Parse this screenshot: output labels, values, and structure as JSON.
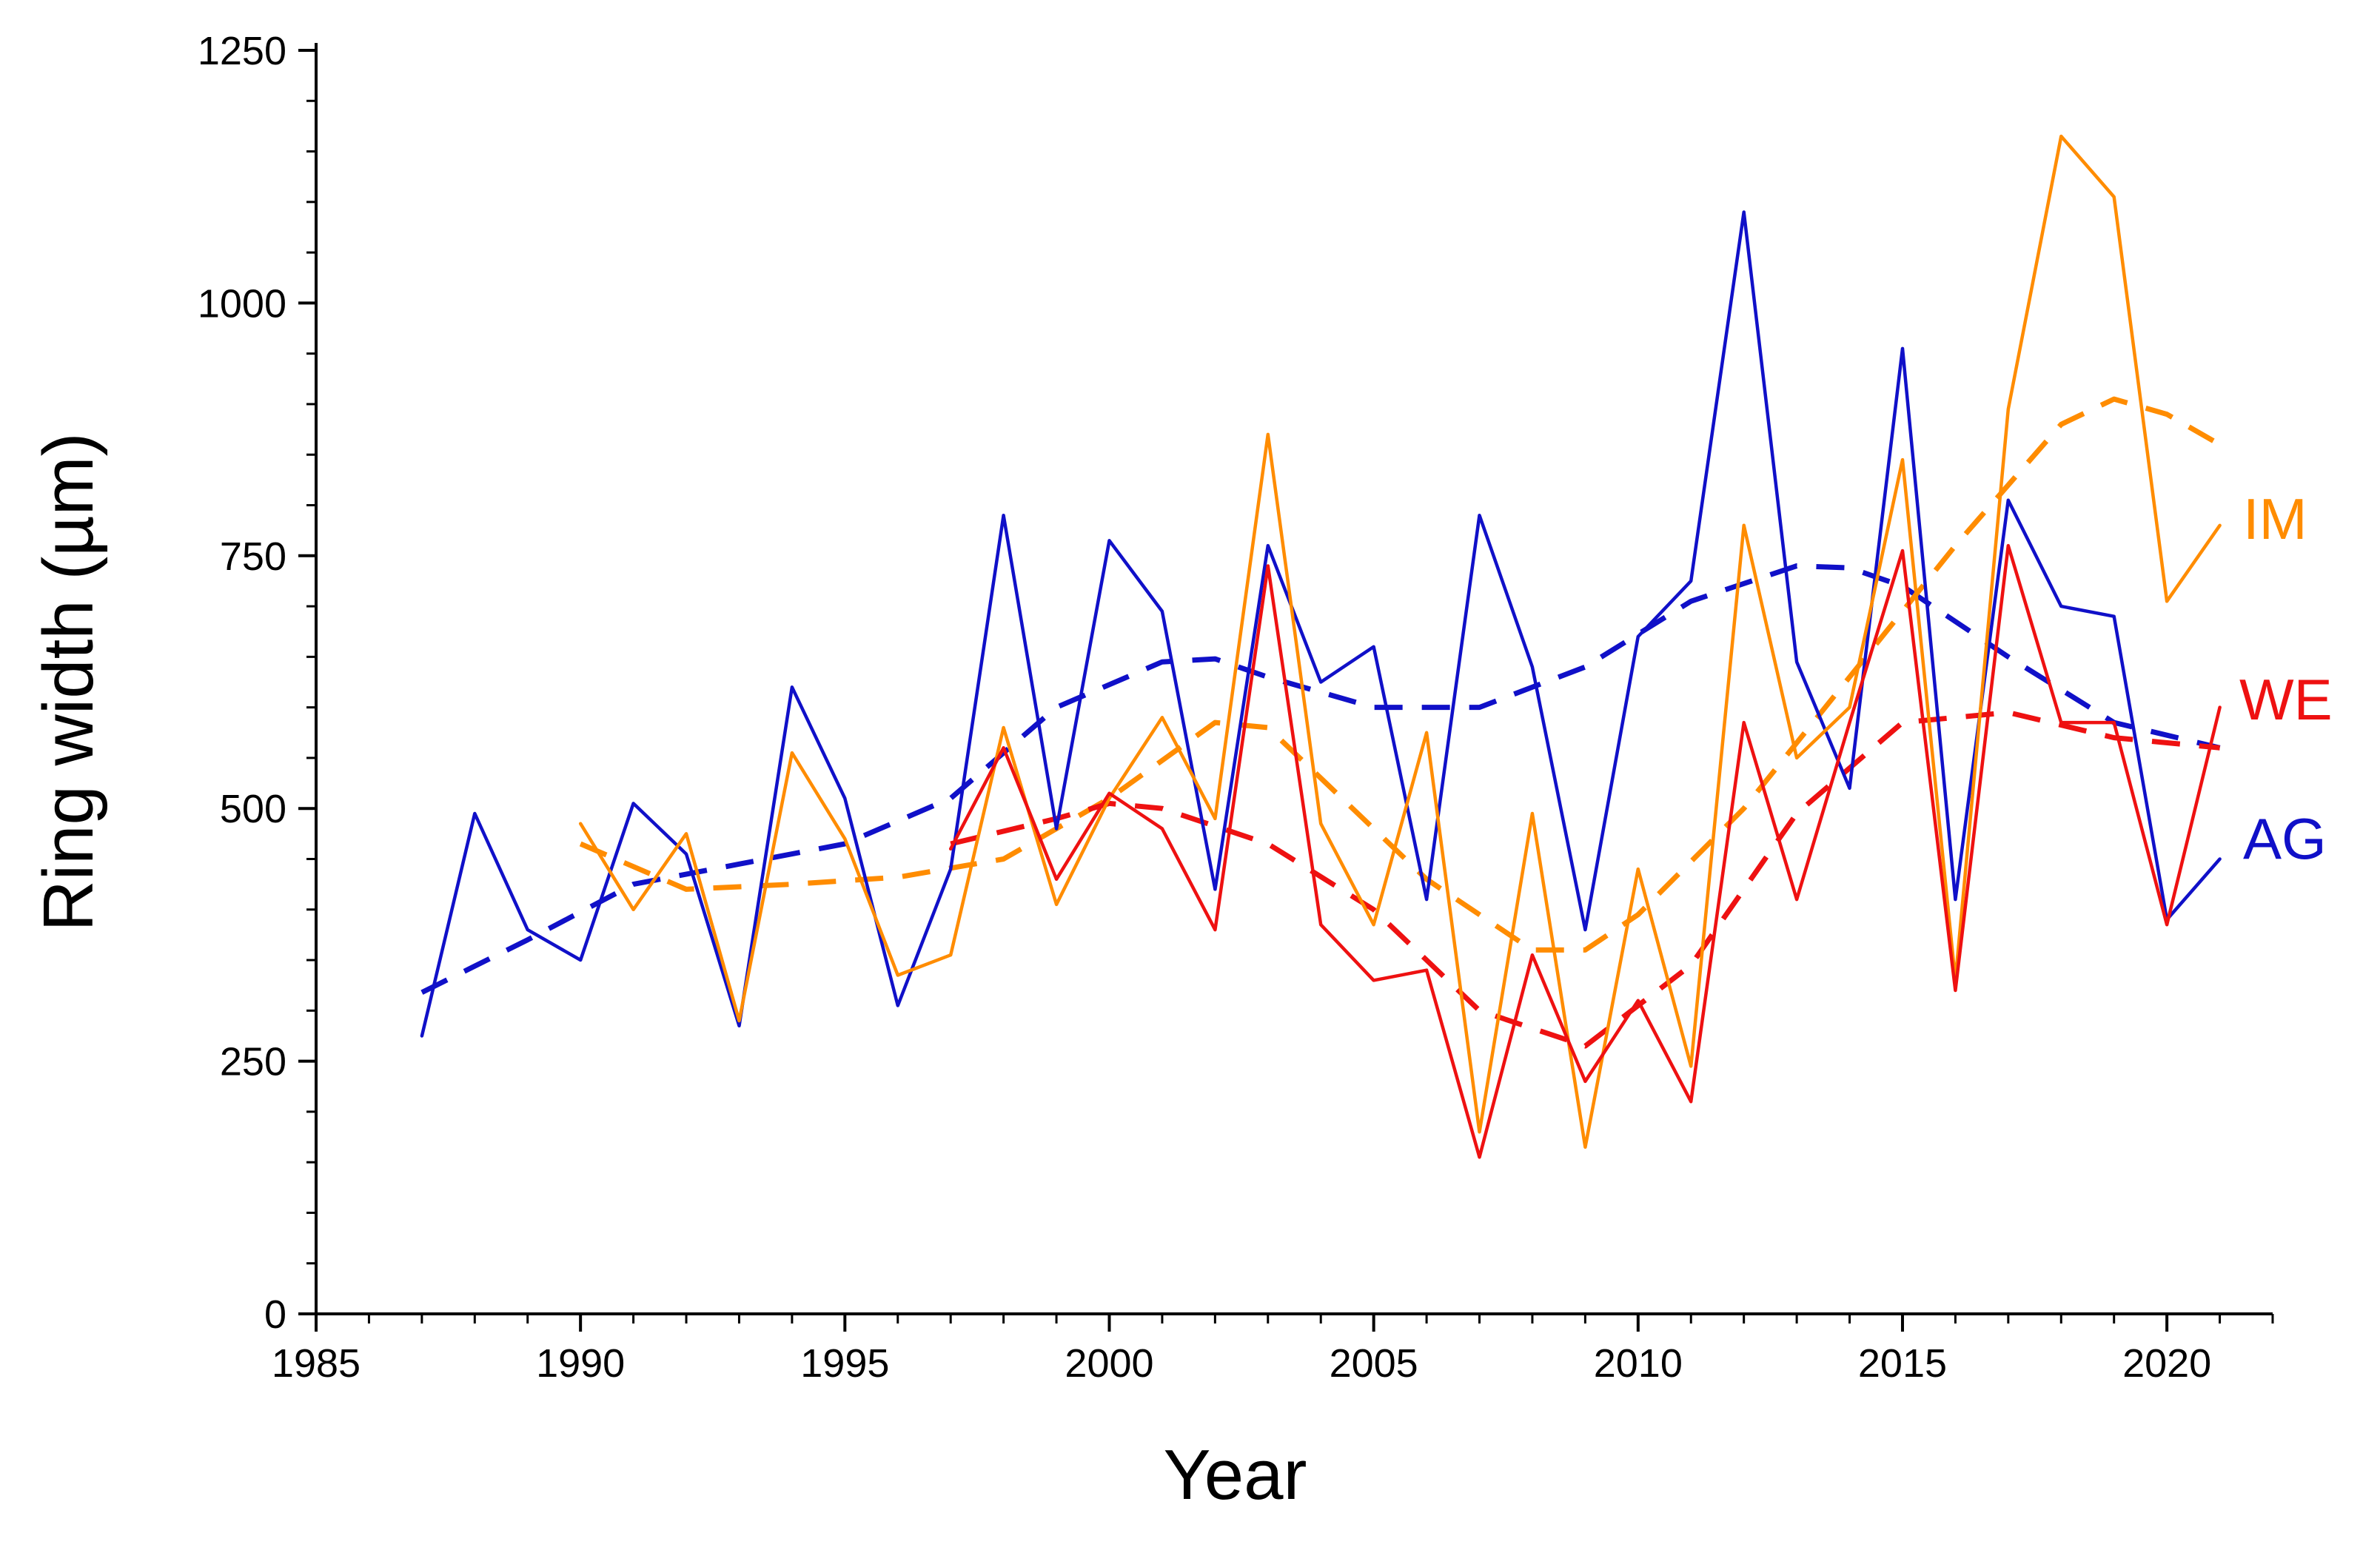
{
  "chart_data": {
    "type": "line",
    "title": "",
    "xlabel": "Year",
    "ylabel": "Ring width (µm)",
    "xlim": [
      1985,
      2022
    ],
    "ylim": [
      0,
      1250
    ],
    "x_ticks": [
      1985,
      1990,
      1995,
      2000,
      2005,
      2010,
      2015,
      2020
    ],
    "y_ticks": [
      0,
      250,
      500,
      750,
      1000,
      1250
    ],
    "grid": false,
    "legend_placement": "right (inline labels)",
    "series": [
      {
        "name": "AG",
        "color": "#1010c8",
        "style": "solid",
        "x": [
          1987,
          1988,
          1989,
          1990,
          1991,
          1992,
          1993,
          1994,
          1995,
          1996,
          1997,
          1998,
          1999,
          2000,
          2001,
          2002,
          2003,
          2004,
          2005,
          2006,
          2007,
          2008,
          2009,
          2010,
          2011,
          2012,
          2013,
          2014,
          2015,
          2016,
          2017,
          2018,
          2019,
          2020,
          2021
        ],
        "values": [
          275,
          495,
          380,
          350,
          505,
          455,
          285,
          620,
          510,
          305,
          440,
          790,
          480,
          765,
          695,
          420,
          760,
          625,
          660,
          410,
          790,
          640,
          380,
          670,
          725,
          1090,
          645,
          520,
          955,
          410,
          805,
          700,
          690,
          390,
          450
        ]
      },
      {
        "name": "IM",
        "color": "#ff8c00",
        "style": "solid",
        "x": [
          1990,
          1991,
          1992,
          1993,
          1994,
          1995,
          1996,
          1997,
          1998,
          1999,
          2000,
          2001,
          2002,
          2003,
          2004,
          2005,
          2006,
          2007,
          2008,
          2009,
          2010,
          2011,
          2012,
          2013,
          2014,
          2015,
          2016,
          2017,
          2018,
          2019,
          2020,
          2021
        ],
        "values": [
          485,
          400,
          475,
          290,
          555,
          470,
          335,
          355,
          580,
          405,
          510,
          590,
          490,
          870,
          485,
          385,
          575,
          180,
          495,
          165,
          440,
          245,
          780,
          550,
          600,
          845,
          330,
          895,
          1165,
          1105,
          705,
          780
        ]
      },
      {
        "name": "WE",
        "color": "#ee1111",
        "style": "solid",
        "x": [
          1997,
          1998,
          1999,
          2000,
          2001,
          2002,
          2003,
          2004,
          2005,
          2006,
          2007,
          2008,
          2009,
          2010,
          2011,
          2012,
          2013,
          2014,
          2015,
          2016,
          2017,
          2018,
          2019,
          2020,
          2021
        ],
        "values": [
          460,
          560,
          430,
          515,
          480,
          380,
          740,
          385,
          330,
          340,
          155,
          355,
          230,
          310,
          210,
          585,
          410,
          585,
          755,
          320,
          760,
          585,
          585,
          385,
          600
        ]
      },
      {
        "name": "AG trend",
        "color": "#1010c8",
        "style": "dashed",
        "x": [
          1987,
          1989,
          1991,
          1993,
          1995,
          1997,
          1999,
          2001,
          2002,
          2003,
          2005,
          2007,
          2009,
          2011,
          2013,
          2014,
          2015,
          2017,
          2019,
          2021
        ],
        "values": [
          318,
          370,
          425,
          445,
          465,
          510,
          600,
          645,
          648,
          630,
          600,
          600,
          640,
          705,
          740,
          738,
          720,
          650,
          585,
          560
        ]
      },
      {
        "name": "IM trend",
        "color": "#ff8c00",
        "style": "dashed",
        "x": [
          1990,
          1992,
          1994,
          1996,
          1998,
          2000,
          2002,
          2003,
          2004,
          2006,
          2008,
          2009,
          2010,
          2012,
          2014,
          2016,
          2018,
          2019,
          2020,
          2021
        ],
        "values": [
          465,
          420,
          425,
          432,
          450,
          510,
          585,
          580,
          530,
          430,
          360,
          360,
          395,
          500,
          630,
          760,
          880,
          905,
          890,
          860
        ]
      },
      {
        "name": "WE trend",
        "color": "#ee1111",
        "style": "dashed",
        "x": [
          1997,
          1999,
          2000,
          2001,
          2003,
          2005,
          2007,
          2009,
          2011,
          2013,
          2015,
          2017,
          2019,
          2021
        ],
        "values": [
          465,
          490,
          505,
          500,
          465,
          400,
          300,
          265,
          345,
          495,
          585,
          595,
          570,
          560
        ]
      }
    ],
    "labels": [
      {
        "text": "IM",
        "color": "#ff8c00",
        "series": "IM"
      },
      {
        "text": "WE",
        "color": "#ee1111",
        "series": "WE"
      },
      {
        "text": "AG",
        "color": "#1010c8",
        "series": "AG"
      }
    ]
  }
}
